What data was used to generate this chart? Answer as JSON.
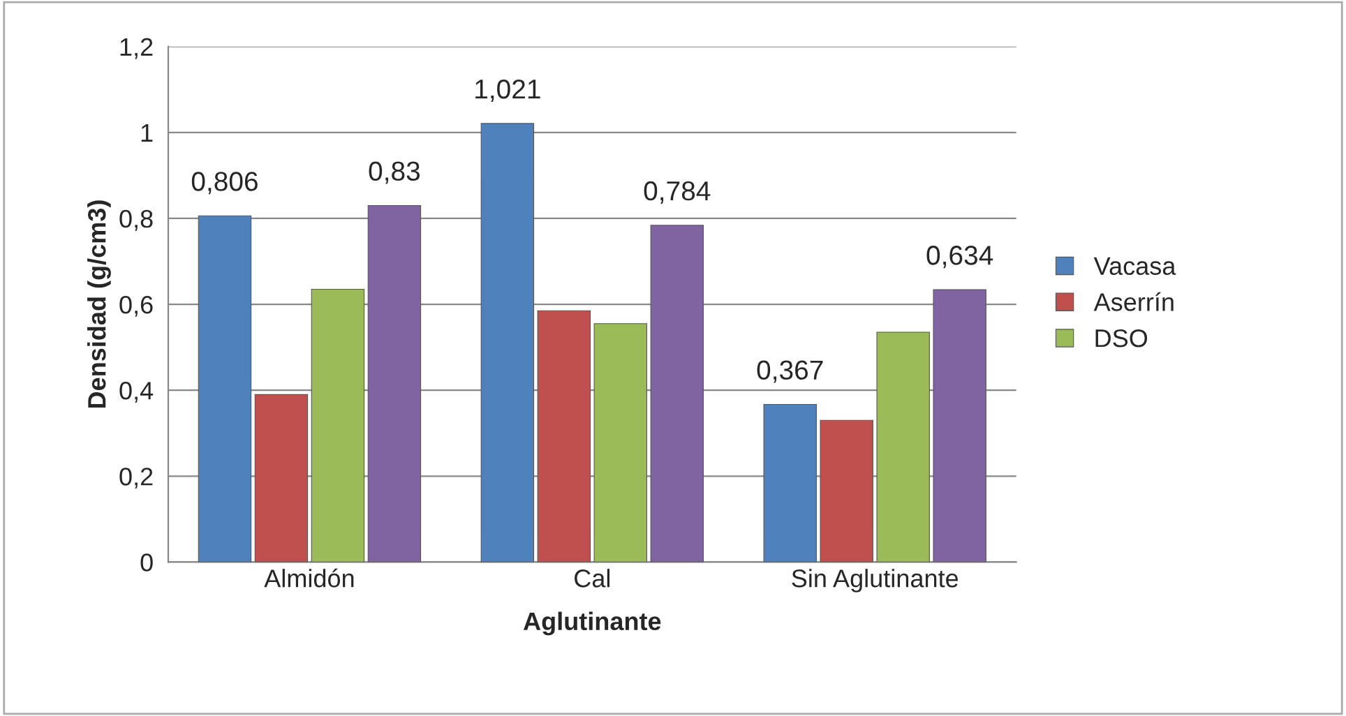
{
  "chart_data": {
    "type": "bar",
    "xlabel": "Aglutinante",
    "ylabel": "Densidad (g/cm3)",
    "categories": [
      "Almidón",
      "Cal",
      "Sin Aglutinante"
    ],
    "series": [
      {
        "name": "Vacasa",
        "color": "#4f81bd",
        "values": [
          0.806,
          1.021,
          0.367
        ],
        "value_labels": [
          "0,806",
          "1,021",
          "0,367"
        ]
      },
      {
        "name": "Aserrín",
        "color": "#c0504d",
        "values": [
          0.39,
          0.585,
          0.33
        ],
        "value_labels": [
          null,
          null,
          null
        ]
      },
      {
        "name": "DSO",
        "color": "#9bbb59",
        "values": [
          0.635,
          0.555,
          0.535
        ],
        "value_labels": [
          null,
          null,
          null
        ]
      },
      {
        "color": "#8064a2",
        "values": [
          0.83,
          0.784,
          0.634
        ],
        "value_labels": [
          "0,83",
          "0,784",
          "0,634"
        ]
      }
    ],
    "ylim": [
      0,
      1.2
    ],
    "yticks": [
      0,
      {
        "value": 0.2,
        "label": "0,2"
      },
      {
        "value": 0.4,
        "label": "0,4"
      },
      {
        "value": 0.6,
        "label": "0,6"
      },
      {
        "value": 0.8,
        "label": "0,8"
      },
      1,
      {
        "value": 1.2,
        "label": "1,2"
      }
    ],
    "grid": "y",
    "legend": "right"
  }
}
